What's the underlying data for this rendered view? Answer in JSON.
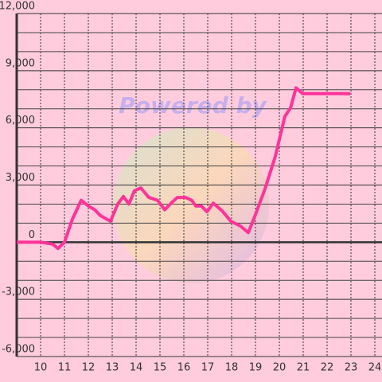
{
  "chart_data": {
    "type": "line",
    "watermark": "Powered by",
    "x": [
      9,
      10,
      10.5,
      10.73,
      11,
      11.33,
      11.7,
      12,
      12.27,
      12.5,
      12.93,
      13.23,
      13.47,
      13.7,
      13.93,
      14.2,
      14.53,
      14.9,
      15.2,
      15.47,
      15.73,
      16.07,
      16.33,
      16.5,
      16.73,
      16.97,
      17.23,
      17.6,
      17.97,
      18.37,
      18.7,
      18.97,
      19.4,
      19.83,
      20.23,
      20.47,
      20.7,
      20.97,
      22.97
    ],
    "series": [
      {
        "color": "#ff3399",
        "values": [
          0,
          0,
          -100,
          -330,
          0,
          1200,
          2200,
          1900,
          1700,
          1400,
          1100,
          2000,
          2400,
          2000,
          2700,
          2850,
          2350,
          2200,
          1700,
          2050,
          2350,
          2350,
          2200,
          1900,
          1900,
          1600,
          2050,
          1650,
          1100,
          850,
          500,
          1350,
          2800,
          4500,
          6600,
          7050,
          8100,
          7800,
          7800
        ]
      }
    ],
    "xlim": [
      9,
      24.3
    ],
    "xticks": [
      10,
      11,
      12,
      13,
      14,
      15,
      16,
      17,
      18,
      19,
      20,
      21,
      22,
      23,
      24
    ],
    "ylim": [
      -6000,
      12000
    ],
    "yticks": [
      {
        "value": -6000,
        "label": "-6,000"
      },
      {
        "value": -3000,
        "label": "-3,000"
      },
      0,
      {
        "value": 3000,
        "label": "3,000"
      },
      {
        "value": 6000,
        "label": "6,000"
      },
      {
        "value": 9000,
        "label": "9,000"
      },
      {
        "value": 12000,
        "label": "12,000"
      }
    ],
    "yminorticks": [
      -5000,
      -4000,
      -2000,
      -1000,
      1000,
      2000,
      4000,
      5000,
      7000,
      8000,
      10000,
      11000
    ],
    "grid": true
  }
}
